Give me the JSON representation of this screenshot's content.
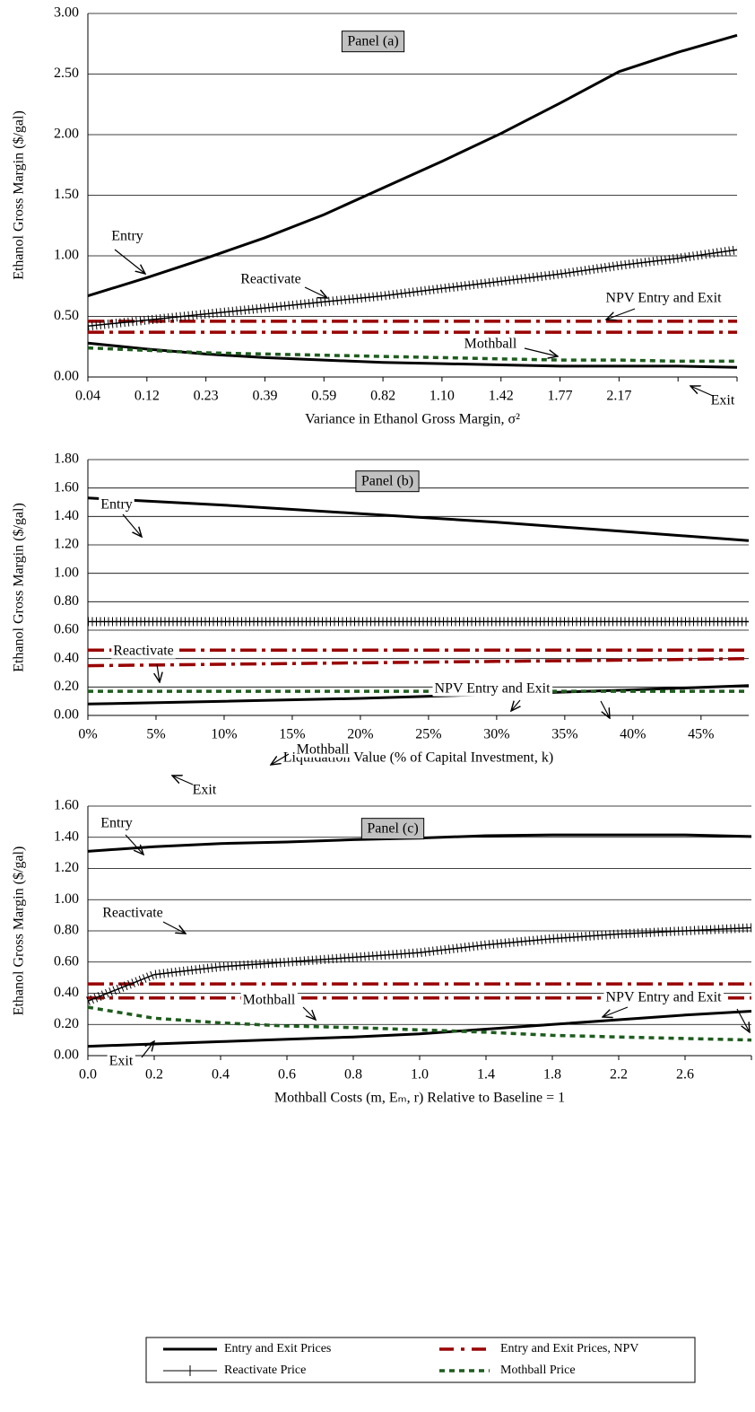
{
  "chart_data": [
    {
      "type": "line",
      "categories": [
        "0.04",
        "0.12",
        "0.23",
        "0.39",
        "0.59",
        "0.82",
        "1.10",
        "1.42",
        "1.77",
        "2.17",
        null,
        null
      ],
      "x_label": "Variance in Ethanol Gross Margin, σ²",
      "y_label": "Ethanol Gross Margin ($/gal)",
      "annotations": [
        "Panel (a)",
        "Entry",
        "Reactivate",
        "NPV Entry and Exit",
        "Mothball",
        "Exit"
      ],
      "ylim": [
        0,
        3
      ],
      "yticks": [
        {
          "value": 0,
          "label": "0.00"
        },
        {
          "value": 0.5,
          "label": "0.50"
        },
        {
          "value": 1,
          "label": "1.00"
        },
        {
          "value": 1.5,
          "label": "1.50"
        },
        {
          "value": 2,
          "label": "2.00"
        },
        {
          "value": 2.5,
          "label": "2.50"
        },
        {
          "value": 3,
          "label": "3.00"
        }
      ],
      "grid": true,
      "series": [
        {
          "style": "solid",
          "color": "#000000",
          "values": [
            0.67,
            0.82,
            0.98,
            1.15,
            1.34,
            1.56,
            1.78,
            2.01,
            2.26,
            2.52,
            2.68,
            2.82
          ]
        },
        {
          "style": "solid",
          "color": "#000000",
          "values": [
            0.28,
            0.23,
            0.19,
            0.16,
            0.14,
            0.12,
            0.11,
            0.1,
            0.09,
            0.09,
            0.09,
            0.08
          ]
        },
        {
          "style": "dash-dot",
          "color": "#990000",
          "values": [
            0.46,
            0.46,
            0.46,
            0.46,
            0.46,
            0.46,
            0.46,
            0.46,
            0.46,
            0.46,
            0.46,
            0.46
          ]
        },
        {
          "style": "dash-dot",
          "color": "#990000",
          "values": [
            0.37,
            0.37,
            0.37,
            0.37,
            0.37,
            0.37,
            0.37,
            0.37,
            0.37,
            0.37,
            0.37,
            0.37
          ]
        },
        {
          "style": "hatched",
          "color": "#000000",
          "values": [
            0.42,
            0.47,
            0.52,
            0.57,
            0.62,
            0.67,
            0.73,
            0.79,
            0.85,
            0.92,
            0.98,
            1.05
          ]
        },
        {
          "style": "dotted",
          "color": "#1e5c1e",
          "values": [
            0.24,
            0.22,
            0.2,
            0.19,
            0.18,
            0.17,
            0.16,
            0.15,
            0.14,
            0.14,
            0.13,
            0.13
          ]
        }
      ]
    },
    {
      "type": "line",
      "x": [
        0,
        10,
        20,
        30,
        40,
        48.5
      ],
      "xlim": [
        0,
        48.5
      ],
      "xticks": [
        {
          "value": 0,
          "label": "0%"
        },
        {
          "value": 5,
          "label": "5%"
        },
        {
          "value": 10,
          "label": "10%"
        },
        {
          "value": 15,
          "label": "15%"
        },
        {
          "value": 20,
          "label": "20%"
        },
        {
          "value": 25,
          "label": "25%"
        },
        {
          "value": 30,
          "label": "30%"
        },
        {
          "value": 35,
          "label": "35%"
        },
        {
          "value": 40,
          "label": "40%"
        },
        {
          "value": 45,
          "label": "45%"
        }
      ],
      "x_label": "Liquidation Value (% of Capital Investment, k)",
      "y_label": "Ethanol Gross Margin ($/gal)",
      "annotations": [
        "Panel (b)",
        "Entry",
        "Reactivate",
        "NPV Entry and Exit",
        "Mothball",
        "Exit"
      ],
      "ylim": [
        0,
        1.8
      ],
      "yticks": [
        {
          "value": 0,
          "label": "0.00"
        },
        {
          "value": 0.2,
          "label": "0.20"
        },
        {
          "value": 0.4,
          "label": "0.40"
        },
        {
          "value": 0.6,
          "label": "0.60"
        },
        {
          "value": 0.8,
          "label": "0.80"
        },
        {
          "value": 1,
          "label": "1.00"
        },
        {
          "value": 1.2,
          "label": "1.20"
        },
        {
          "value": 1.4,
          "label": "1.40"
        },
        {
          "value": 1.6,
          "label": "1.60"
        },
        {
          "value": 1.8,
          "label": "1.80"
        }
      ],
      "grid": true,
      "series": [
        {
          "style": "solid",
          "color": "#000000",
          "values": [
            1.53,
            1.48,
            1.42,
            1.36,
            1.29,
            1.23
          ]
        },
        {
          "style": "solid",
          "color": "#000000",
          "values": [
            0.08,
            0.1,
            0.12,
            0.15,
            0.18,
            0.21
          ]
        },
        {
          "style": "dash-dot",
          "color": "#990000",
          "values": [
            0.46,
            0.46,
            0.46,
            0.46,
            0.46,
            0.46
          ]
        },
        {
          "style": "dash-dot",
          "color": "#990000",
          "values": [
            0.35,
            0.36,
            0.37,
            0.38,
            0.39,
            0.4
          ]
        },
        {
          "style": "hatched",
          "color": "#000000",
          "values": [
            0.66,
            0.66,
            0.66,
            0.66,
            0.66,
            0.66
          ]
        },
        {
          "style": "dotted",
          "color": "#1e5c1e",
          "values": [
            0.17,
            0.17,
            0.17,
            0.17,
            0.17,
            0.17
          ]
        }
      ]
    },
    {
      "type": "line",
      "categories": [
        "0.0",
        "0.2",
        "0.4",
        "0.6",
        "0.8",
        "1.0",
        "1.4",
        "1.8",
        "2.2",
        "2.6",
        null
      ],
      "x_label": "Mothball Costs (m, Eₘ, r) Relative to Baseline = 1",
      "y_label": "Ethanol Gross Margin ($/gal)",
      "annotations": [
        "Panel (c)",
        "Entry",
        "Reactivate",
        "NPV Entry and Exit",
        "Mothball",
        "Exit"
      ],
      "ylim": [
        0,
        1.6
      ],
      "yticks": [
        {
          "value": 0,
          "label": "0.00"
        },
        {
          "value": 0.2,
          "label": "0.20"
        },
        {
          "value": 0.4,
          "label": "0.40"
        },
        {
          "value": 0.6,
          "label": "0.60"
        },
        {
          "value": 0.8,
          "label": "0.80"
        },
        {
          "value": 1,
          "label": "1.00"
        },
        {
          "value": 1.2,
          "label": "1.20"
        },
        {
          "value": 1.4,
          "label": "1.40"
        },
        {
          "value": 1.6,
          "label": "1.60"
        }
      ],
      "grid": true,
      "series": [
        {
          "style": "solid",
          "color": "#000000",
          "values": [
            1.31,
            1.34,
            1.36,
            1.37,
            1.385,
            1.395,
            1.41,
            1.415,
            1.415,
            1.415,
            1.405
          ]
        },
        {
          "style": "solid",
          "color": "#000000",
          "values": [
            0.06,
            0.075,
            0.09,
            0.105,
            0.12,
            0.14,
            0.17,
            0.2,
            0.23,
            0.26,
            0.285
          ]
        },
        {
          "style": "dash-dot",
          "color": "#990000",
          "values": [
            0.46,
            0.46,
            0.46,
            0.46,
            0.46,
            0.46,
            0.46,
            0.46,
            0.46,
            0.46,
            0.46
          ]
        },
        {
          "style": "dash-dot",
          "color": "#990000",
          "values": [
            0.37,
            0.37,
            0.37,
            0.37,
            0.37,
            0.37,
            0.37,
            0.37,
            0.37,
            0.37,
            0.37
          ]
        },
        {
          "style": "hatched",
          "color": "#000000",
          "values": [
            0.35,
            0.52,
            0.57,
            0.6,
            0.63,
            0.66,
            0.71,
            0.75,
            0.78,
            0.8,
            0.82
          ]
        },
        {
          "style": "dotted",
          "color": "#1e5c1e",
          "values": [
            0.31,
            0.24,
            0.21,
            0.19,
            0.18,
            0.165,
            0.15,
            0.13,
            0.12,
            0.11,
            0.1
          ]
        }
      ]
    }
  ],
  "legend": [
    {
      "name": "Entry and Exit Prices",
      "style": "solid",
      "color": "#000000"
    },
    {
      "name": "Entry and Exit Prices, NPV",
      "style": "dash-dot",
      "color": "#990000"
    },
    {
      "name": "Reactivate Price",
      "style": "hatched",
      "color": "#000000"
    },
    {
      "name": "Mothball Price",
      "style": "dotted",
      "color": "#1e5c1e"
    }
  ]
}
